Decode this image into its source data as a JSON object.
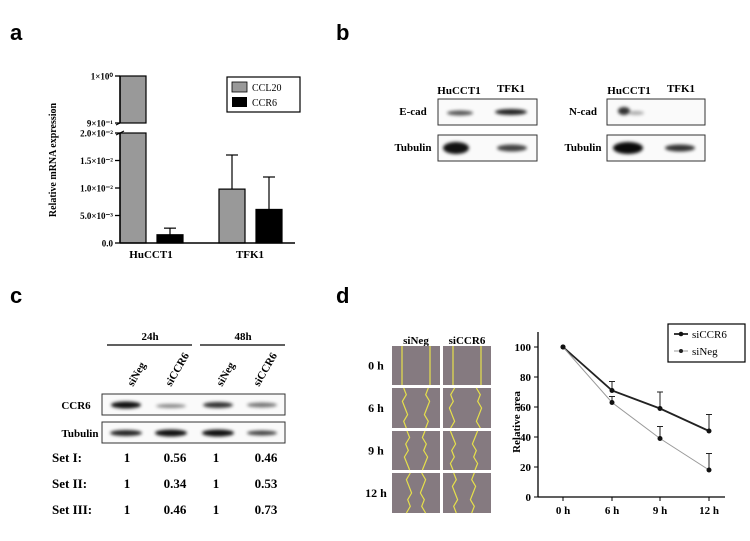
{
  "panels": {
    "a": "a",
    "b": "b",
    "c": "c",
    "d": "d"
  },
  "chart_data": [
    {
      "type": "bar",
      "panel": "a",
      "ylabel": "Relative mRNA expression",
      "categories": [
        "HuCCT1",
        "TFK1"
      ],
      "series": [
        {
          "name": "CCL20",
          "color": "#999999",
          "values": [
            1.0,
            0.0098
          ],
          "error": [
            0,
            0.0062
          ]
        },
        {
          "name": "CCR6",
          "color": "#000000",
          "values": [
            0.0015,
            0.0061
          ],
          "error": [
            0.0012,
            0.0059
          ]
        }
      ],
      "yticks": [
        {
          "value": 0,
          "label": "0.0"
        },
        {
          "value": 0.005,
          "label": "5.0×10⁻³"
        },
        {
          "value": 0.01,
          "label": "1.0×10⁻²"
        },
        {
          "value": 0.015,
          "label": "1.5×10⁻²"
        },
        {
          "value": 0.02,
          "label": "2.0×10⁻²"
        },
        {
          "value": 0.9,
          "label": "9×10⁻¹"
        },
        {
          "value": 1.0,
          "label": "1×10⁰"
        }
      ],
      "axis_break": [
        0.02,
        0.9
      ],
      "legend": "top-right"
    },
    {
      "type": "line",
      "panel": "d",
      "ylabel": "Relative area",
      "x": [
        "0 h",
        "6 h",
        "9 h",
        "12 h"
      ],
      "series": [
        {
          "name": "siCCR6",
          "values": [
            100,
            71,
            59,
            44
          ],
          "error": [
            0,
            6,
            11,
            11
          ]
        },
        {
          "name": "siNeg",
          "values": [
            100,
            63,
            39,
            18
          ],
          "error": [
            0,
            4,
            8,
            11
          ]
        }
      ],
      "yticks": [
        0,
        20,
        40,
        60,
        80,
        100
      ],
      "ylim": [
        0,
        110
      ],
      "legend": "top-right"
    }
  ],
  "blot_b": {
    "lanes": [
      "HuCCT1",
      "TFK1"
    ],
    "left_rows": [
      "E-cad",
      "Tubulin"
    ],
    "right_rows": [
      "N-cad",
      "Tubulin"
    ]
  },
  "blot_c": {
    "timepoints": [
      "24h",
      "48h"
    ],
    "lanes": [
      "siNeg",
      "siCCR6",
      "siNeg",
      "siCCR6"
    ],
    "rows": [
      "CCR6",
      "Tubulin"
    ],
    "quant": [
      {
        "label": "Set I:",
        "values": [
          "1",
          "0.56",
          "1",
          "0.46"
        ]
      },
      {
        "label": "Set II:",
        "values": [
          "1",
          "0.34",
          "1",
          "0.53"
        ]
      },
      {
        "label": "Set III:",
        "values": [
          "1",
          "0.46",
          "1",
          "0.73"
        ]
      }
    ]
  },
  "wound_d": {
    "columns": [
      "siNeg",
      "siCCR6"
    ],
    "rows": [
      "0 h",
      "6 h",
      "9 h",
      "12 h"
    ]
  }
}
